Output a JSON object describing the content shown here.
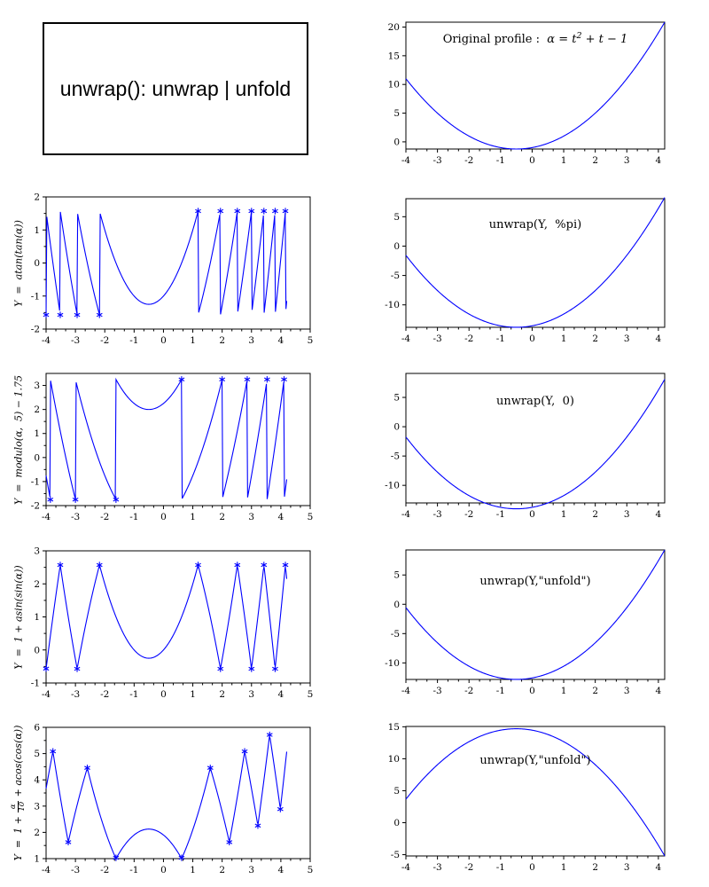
{
  "title_box": {
    "text": "unwrap(): unwrap | unfold"
  },
  "colors": {
    "curve": "#0000ff",
    "axis": "#000000",
    "text": "#000000"
  },
  "chart_data": [
    {
      "id": "original-profile",
      "type": "line",
      "title_parts": [
        {
          "t": "Original profile :  "
        },
        {
          "t": "α = t",
          "i": true
        },
        {
          "t": "2",
          "i": true,
          "sup": true
        },
        {
          "t": " + t − 1",
          "i": true
        }
      ],
      "formula": "t^2 + t - 1",
      "curve": "original",
      "tdomain": [
        -4,
        4.2
      ],
      "xlim": [
        -4,
        4.2
      ],
      "ylim": [
        -1.25,
        20.85
      ],
      "xticks": [
        -4,
        -3,
        -2,
        -1,
        0,
        1,
        2,
        3,
        4
      ],
      "yticks": [
        0,
        5,
        10,
        15,
        20
      ],
      "x_minor": 2,
      "y_minor": 0,
      "samples": 300,
      "markers": [],
      "frame": {
        "l": 458,
        "t": 25,
        "r": 750,
        "b": 168
      },
      "title_dy": 10
    },
    {
      "id": "wrapped-atan-tan",
      "type": "line",
      "ylabel": {
        "text": "Y  =  atan(tan(α))"
      },
      "formula": "atan(tan(t^2+t-1))",
      "curve": "atan_tan",
      "tdomain": [
        -4,
        4.2
      ],
      "xlim": [
        -4,
        5
      ],
      "ylim": [
        -2,
        2
      ],
      "xticks": [
        -4,
        -3,
        -2,
        -1,
        0,
        1,
        2,
        3,
        4,
        5
      ],
      "yticks": [
        -2,
        -1,
        0,
        1,
        2
      ],
      "x_minor": 2,
      "y_minor": 1,
      "samples": 320,
      "markers": [
        [
          -4,
          -1.571
        ],
        [
          -3.517,
          -1.571
        ],
        [
          -2.942,
          -1.571
        ],
        [
          -2.18,
          -1.571
        ],
        [
          1.18,
          1.571
        ],
        [
          1.942,
          1.571
        ],
        [
          2.517,
          1.571
        ],
        [
          3.0,
          1.571
        ],
        [
          3.423,
          1.571
        ],
        [
          3.805,
          1.571
        ],
        [
          4.155,
          1.571
        ]
      ],
      "frame": {
        "l": 52,
        "t": 222,
        "r": 350,
        "b": 371
      }
    },
    {
      "id": "unwrap-pi",
      "type": "line",
      "title_parts": [
        {
          "t": "unwrap(Y,  %pi)"
        }
      ],
      "formula": "(t^2+t-1) - 4*pi",
      "curve": "unwrap_pi",
      "tdomain": [
        -4,
        4.2
      ],
      "xlim": [
        -4,
        4.2
      ],
      "ylim": [
        -13.82,
        8.07
      ],
      "xticks": [
        -4,
        -3,
        -2,
        -1,
        0,
        1,
        2,
        3,
        4
      ],
      "yticks": [
        -10,
        -5,
        0,
        5
      ],
      "x_minor": 2,
      "y_minor": 0,
      "samples": 300,
      "markers": [],
      "frame": {
        "l": 458,
        "t": 224,
        "r": 750,
        "b": 369
      },
      "title_dy": 22
    },
    {
      "id": "wrapped-modulo",
      "type": "line",
      "ylabel": {
        "text": "Y  =  modulo(α,  5) − 1.75"
      },
      "formula": "pmodulo(t^2+t-1, 5) - 1.75",
      "curve": "pmod5",
      "tdomain": [
        -4,
        4.2
      ],
      "xlim": [
        -4,
        5
      ],
      "ylim": [
        -2,
        3.5
      ],
      "xticks": [
        -4,
        -3,
        -2,
        -1,
        0,
        1,
        2,
        3,
        4,
        5
      ],
      "yticks": [
        -2,
        -1,
        0,
        1,
        2,
        3
      ],
      "x_minor": 2,
      "y_minor": 1,
      "samples": 320,
      "markers": [
        [
          -3.854,
          -1.75
        ],
        [
          -3.0,
          -1.75
        ],
        [
          -1.618,
          -1.75
        ],
        [
          0.618,
          3.25
        ],
        [
          2.0,
          3.25
        ],
        [
          2.854,
          3.25
        ],
        [
          3.531,
          3.25
        ],
        [
          4.11,
          3.25
        ]
      ],
      "frame": {
        "l": 52,
        "t": 421,
        "r": 350,
        "b": 570
      }
    },
    {
      "id": "unwrap-0",
      "type": "line",
      "title_parts": [
        {
          "t": "unwrap(Y,  0)"
        }
      ],
      "formula": "(t^2+t-1) - 12.75",
      "curve": "unwrap_0",
      "tdomain": [
        -4,
        4.2
      ],
      "xlim": [
        -4,
        4.2
      ],
      "ylim": [
        -13.0,
        9.09
      ],
      "xticks": [
        -4,
        -3,
        -2,
        -1,
        0,
        1,
        2,
        3,
        4
      ],
      "yticks": [
        -10,
        -5,
        0,
        5
      ],
      "x_minor": 2,
      "y_minor": 0,
      "samples": 300,
      "markers": [],
      "frame": {
        "l": 458,
        "t": 421,
        "r": 750,
        "b": 567
      },
      "title_dy": 24
    },
    {
      "id": "wrapped-asin-sin",
      "type": "line",
      "ylabel": {
        "text": "Y  =  1 + asin(sin(α))"
      },
      "formula": "1 + asin(sin(t^2+t-1))",
      "curve": "asin_sin",
      "tdomain": [
        -4,
        4.2
      ],
      "xlim": [
        -4,
        5
      ],
      "ylim": [
        -1,
        3
      ],
      "xticks": [
        -4,
        -3,
        -2,
        -1,
        0,
        1,
        2,
        3,
        4,
        5
      ],
      "yticks": [
        -1,
        0,
        1,
        2,
        3
      ],
      "x_minor": 2,
      "y_minor": 1,
      "samples": 320,
      "markers": [
        [
          -4,
          -0.566
        ],
        [
          -3.517,
          2.571
        ],
        [
          -2.942,
          -0.571
        ],
        [
          -2.18,
          2.571
        ],
        [
          1.18,
          2.571
        ],
        [
          1.942,
          -0.571
        ],
        [
          2.517,
          2.571
        ],
        [
          3.0,
          -0.571
        ],
        [
          3.423,
          2.571
        ],
        [
          3.805,
          -0.571
        ],
        [
          4.155,
          2.571
        ]
      ],
      "frame": {
        "l": 52,
        "t": 621,
        "r": 350,
        "b": 770
      }
    },
    {
      "id": "unwrap-unfold-asin",
      "type": "line",
      "title_parts": [
        {
          "t": "unwrap(Y,\"unfold\")"
        }
      ],
      "formula": "(t^2+t-1) - 4*pi + 1",
      "curve": "unwrap_unfold_up",
      "tdomain": [
        -4,
        4.2
      ],
      "xlim": [
        -4,
        4.2
      ],
      "ylim": [
        -12.82,
        9.27
      ],
      "xticks": [
        -4,
        -3,
        -2,
        -1,
        0,
        1,
        2,
        3,
        4
      ],
      "yticks": [
        -10,
        -5,
        0,
        5
      ],
      "x_minor": 2,
      "y_minor": 0,
      "samples": 300,
      "markers": [],
      "frame": {
        "l": 458,
        "t": 620,
        "r": 750,
        "b": 766
      },
      "title_dy": 28
    },
    {
      "id": "wrapped-acos-cos",
      "type": "line",
      "ylabel": {
        "pre": "Y  =  1 + ",
        "num": "α",
        "den": "10",
        "post": " + acos(cos(α))"
      },
      "formula": "1 + (t^2+t-1)/10 + acos(cos(t^2+t-1))",
      "curve": "acos_cos",
      "tdomain": [
        -4,
        4.2
      ],
      "xlim": [
        -4,
        5
      ],
      "ylim": [
        1,
        6
      ],
      "xticks": [
        -4,
        -3,
        -2,
        -1,
        0,
        1,
        2,
        3,
        4,
        5
      ],
      "yticks": [
        1,
        2,
        3,
        4,
        5,
        6
      ],
      "x_minor": 2,
      "y_minor": 1,
      "samples": 320,
      "markers": [
        [
          -3.767,
          5.084
        ],
        [
          -3.245,
          1.628
        ],
        [
          -2.596,
          4.456
        ],
        [
          -1.618,
          1.03
        ],
        [
          0.618,
          1.03
        ],
        [
          1.596,
          4.456
        ],
        [
          2.245,
          1.628
        ],
        [
          2.767,
          5.084
        ],
        [
          3.217,
          2.257
        ],
        [
          3.618,
          5.712
        ],
        [
          3.983,
          2.885
        ]
      ],
      "frame": {
        "l": 52,
        "t": 820,
        "r": 350,
        "b": 968
      }
    },
    {
      "id": "unwrap-unfold-acos",
      "type": "line",
      "title_parts": [
        {
          "t": "unwrap(Y,\"unfold\")"
        }
      ],
      "formula": "1 + (t^2+t-1)/10 + 4*pi - (t^2+t-1)",
      "curve": "unwrap_unfold_down",
      "tdomain": [
        -4,
        4.2
      ],
      "xlim": [
        -4,
        4.2
      ],
      "ylim": [
        -5.2,
        15.05
      ],
      "xticks": [
        -4,
        -3,
        -2,
        -1,
        0,
        1,
        2,
        3,
        4
      ],
      "yticks": [
        -5,
        0,
        5,
        10,
        15
      ],
      "x_minor": 2,
      "y_minor": 0,
      "samples": 300,
      "markers": [],
      "frame": {
        "l": 458,
        "t": 819,
        "r": 750,
        "b": 965
      },
      "title_dy": 31
    }
  ]
}
